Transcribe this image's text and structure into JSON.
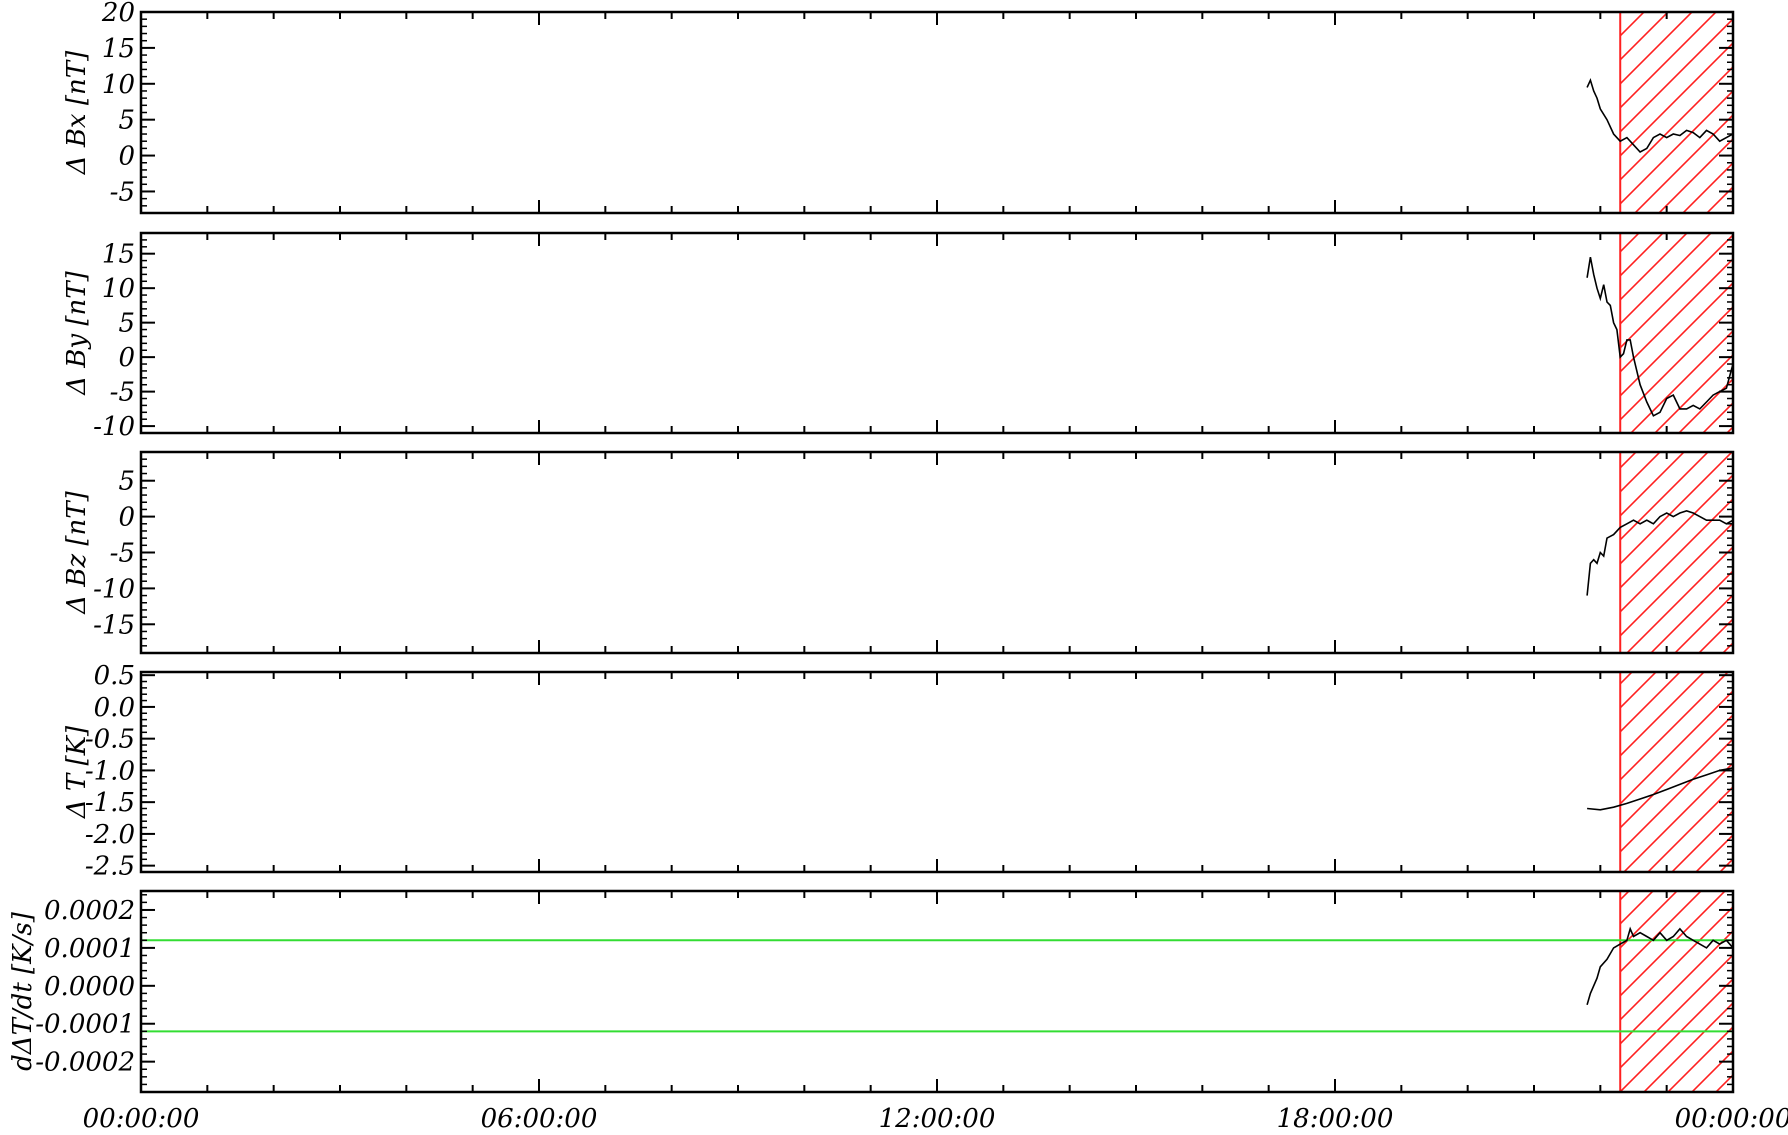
{
  "chart_data": [
    {
      "type": "line",
      "ylabel": "Δ Bx [nT]",
      "ylim": [
        -8,
        20
      ],
      "yticks": [
        -5,
        0,
        5,
        10,
        15,
        20
      ],
      "ytick_labels": [
        "-5",
        "0",
        "5",
        "10",
        "15",
        "20"
      ],
      "xlim_hours": [
        0,
        24
      ],
      "series": [
        {
          "points": [
            [
              21.8,
              9.5
            ],
            [
              21.85,
              10.5
            ],
            [
              21.9,
              9.0
            ],
            [
              21.95,
              8.0
            ],
            [
              22.0,
              6.5
            ],
            [
              22.1,
              5.0
            ],
            [
              22.2,
              3.0
            ],
            [
              22.3,
              2.0
            ],
            [
              22.4,
              2.5
            ],
            [
              22.5,
              1.5
            ],
            [
              22.6,
              0.5
            ],
            [
              22.7,
              1.0
            ],
            [
              22.8,
              2.5
            ],
            [
              22.9,
              3.0
            ],
            [
              23.0,
              2.5
            ],
            [
              23.1,
              3.0
            ],
            [
              23.2,
              2.8
            ],
            [
              23.3,
              3.5
            ],
            [
              23.4,
              3.2
            ],
            [
              23.5,
              2.5
            ],
            [
              23.6,
              3.5
            ],
            [
              23.7,
              3.0
            ],
            [
              23.8,
              2.0
            ],
            [
              23.9,
              2.5
            ],
            [
              24.0,
              3.0
            ]
          ]
        }
      ]
    },
    {
      "type": "line",
      "ylabel": "Δ By [nT]",
      "ylim": [
        -11,
        18
      ],
      "yticks": [
        -10,
        -5,
        0,
        5,
        10,
        15
      ],
      "ytick_labels": [
        "-10",
        "-5",
        "0",
        "5",
        "10",
        "15"
      ],
      "xlim_hours": [
        0,
        24
      ],
      "series": [
        {
          "points": [
            [
              21.8,
              11.5
            ],
            [
              21.85,
              14.5
            ],
            [
              21.9,
              12.0
            ],
            [
              21.95,
              10.0
            ],
            [
              22.0,
              8.5
            ],
            [
              22.05,
              10.5
            ],
            [
              22.1,
              8.0
            ],
            [
              22.15,
              7.5
            ],
            [
              22.2,
              5.0
            ],
            [
              22.25,
              4.0
            ],
            [
              22.3,
              0.0
            ],
            [
              22.35,
              0.5
            ],
            [
              22.4,
              2.5
            ],
            [
              22.45,
              2.5
            ],
            [
              22.5,
              0.0
            ],
            [
              22.6,
              -4.0
            ],
            [
              22.7,
              -6.5
            ],
            [
              22.8,
              -8.5
            ],
            [
              22.9,
              -8.0
            ],
            [
              23.0,
              -6.0
            ],
            [
              23.1,
              -5.5
            ],
            [
              23.2,
              -7.5
            ],
            [
              23.3,
              -7.5
            ],
            [
              23.4,
              -7.0
            ],
            [
              23.5,
              -7.5
            ],
            [
              23.6,
              -6.5
            ],
            [
              23.7,
              -5.5
            ],
            [
              23.8,
              -5.0
            ],
            [
              23.9,
              -4.5
            ],
            [
              24.0,
              -1.0
            ]
          ]
        }
      ]
    },
    {
      "type": "line",
      "ylabel": "Δ Bz [nT]",
      "ylim": [
        -19,
        9
      ],
      "yticks": [
        -15,
        -10,
        -5,
        0,
        5
      ],
      "ytick_labels": [
        "-15",
        "-10",
        "-5",
        "0",
        "5"
      ],
      "xlim_hours": [
        0,
        24
      ],
      "series": [
        {
          "points": [
            [
              21.8,
              -11.0
            ],
            [
              21.85,
              -6.5
            ],
            [
              21.9,
              -6.0
            ],
            [
              21.95,
              -6.5
            ],
            [
              22.0,
              -5.0
            ],
            [
              22.05,
              -5.5
            ],
            [
              22.1,
              -3.0
            ],
            [
              22.2,
              -2.5
            ],
            [
              22.3,
              -1.5
            ],
            [
              22.4,
              -1.0
            ],
            [
              22.5,
              -0.5
            ],
            [
              22.6,
              -1.0
            ],
            [
              22.7,
              -0.5
            ],
            [
              22.8,
              -1.0
            ],
            [
              22.9,
              0.0
            ],
            [
              23.0,
              0.5
            ],
            [
              23.1,
              0.0
            ],
            [
              23.2,
              0.5
            ],
            [
              23.3,
              0.8
            ],
            [
              23.4,
              0.5
            ],
            [
              23.5,
              0.0
            ],
            [
              23.6,
              -0.5
            ],
            [
              23.7,
              -0.5
            ],
            [
              23.8,
              -0.5
            ],
            [
              23.9,
              -1.0
            ],
            [
              24.0,
              -0.5
            ]
          ]
        }
      ]
    },
    {
      "type": "line",
      "ylabel": "Δ T [K]",
      "ylim": [
        -2.6,
        0.55
      ],
      "yticks": [
        -2.5,
        -2.0,
        -1.5,
        -1.0,
        -0.5,
        0.0,
        0.5
      ],
      "ytick_labels": [
        "-2.5",
        "-2.0",
        "-1.5",
        "-1.0",
        "-0.5",
        "0.0",
        "0.5"
      ],
      "xlim_hours": [
        0,
        24
      ],
      "series": [
        {
          "points": [
            [
              21.8,
              -1.6
            ],
            [
              22.0,
              -1.62
            ],
            [
              22.2,
              -1.58
            ],
            [
              22.4,
              -1.52
            ],
            [
              22.6,
              -1.45
            ],
            [
              22.8,
              -1.38
            ],
            [
              23.0,
              -1.3
            ],
            [
              23.2,
              -1.22
            ],
            [
              23.4,
              -1.14
            ],
            [
              23.6,
              -1.07
            ],
            [
              23.8,
              -1.0
            ],
            [
              24.0,
              -0.96
            ]
          ]
        }
      ]
    },
    {
      "type": "line",
      "ylabel": "dΔT/dt [K/s]",
      "ylim": [
        -0.00028,
        0.00025
      ],
      "yticks": [
        -0.0002,
        -0.0001,
        0.0,
        0.0001,
        0.0002
      ],
      "ytick_labels": [
        "-0.0002",
        "-0.0001",
        "0.0000",
        "0.0001",
        "0.0002"
      ],
      "xlim_hours": [
        0,
        24
      ],
      "xtick_labels": [
        "00:00:00",
        "06:00:00",
        "12:00:00",
        "18:00:00",
        "00:00:00"
      ],
      "thresholds": [
        0.00012,
        -0.00012
      ],
      "series": [
        {
          "points": [
            [
              21.8,
              -5e-05
            ],
            [
              21.85,
              -2e-05
            ],
            [
              21.9,
              0.0
            ],
            [
              21.95,
              2e-05
            ],
            [
              22.0,
              5e-05
            ],
            [
              22.1,
              7e-05
            ],
            [
              22.2,
              0.0001
            ],
            [
              22.3,
              0.00011
            ],
            [
              22.4,
              0.00012
            ],
            [
              22.45,
              0.00015
            ],
            [
              22.5,
              0.00013
            ],
            [
              22.6,
              0.00014
            ],
            [
              22.7,
              0.00013
            ],
            [
              22.8,
              0.00012
            ],
            [
              22.9,
              0.00014
            ],
            [
              23.0,
              0.00012
            ],
            [
              23.1,
              0.00013
            ],
            [
              23.2,
              0.00015
            ],
            [
              23.3,
              0.00013
            ],
            [
              23.4,
              0.00012
            ],
            [
              23.5,
              0.00011
            ],
            [
              23.6,
              0.0001
            ],
            [
              23.7,
              0.00012
            ],
            [
              23.8,
              0.00011
            ],
            [
              23.9,
              0.00012
            ],
            [
              24.0,
              0.0001
            ]
          ]
        }
      ]
    }
  ],
  "highlight_window_hours": [
    22.3,
    24.0
  ],
  "colors": {
    "data_line": "#000000",
    "highlight": "#ff2020",
    "threshold": "#33dd33",
    "axes": "#000000"
  }
}
